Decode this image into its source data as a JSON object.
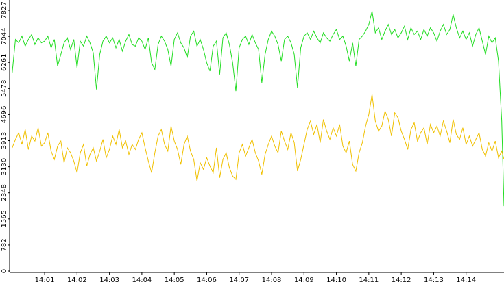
{
  "chart_data": {
    "type": "line",
    "x": [
      0,
      0.1,
      0.2,
      0.3,
      0.4,
      0.5,
      0.6,
      0.7,
      0.8,
      0.9,
      1,
      1.1,
      1.2,
      1.3,
      1.4,
      1.5,
      1.6,
      1.7,
      1.8,
      1.9,
      2,
      2.1,
      2.2,
      2.3,
      2.4,
      2.5,
      2.6,
      2.7,
      2.8,
      2.9,
      3,
      3.1,
      3.2,
      3.3,
      3.4,
      3.5,
      3.6,
      3.7,
      3.8,
      3.9,
      4,
      4.1,
      4.2,
      4.3,
      4.4,
      4.5,
      4.6,
      4.7,
      4.8,
      4.9,
      5,
      5.1,
      5.2,
      5.3,
      5.4,
      5.5,
      5.6,
      5.7,
      5.8,
      5.9,
      6,
      6.1,
      6.2,
      6.3,
      6.4,
      6.5,
      6.6,
      6.7,
      6.8,
      6.9,
      7,
      7.1,
      7.2,
      7.3,
      7.4,
      7.5,
      7.6,
      7.7,
      7.8,
      7.9,
      8,
      8.1,
      8.2,
      8.3,
      8.4,
      8.5,
      8.6,
      8.7,
      8.8,
      8.9,
      9,
      9.1,
      9.2,
      9.3,
      9.4,
      9.5,
      9.6,
      9.7,
      9.8,
      9.9,
      10,
      10.1,
      10.2,
      10.3,
      10.4,
      10.5,
      10.6,
      10.7,
      10.8,
      10.9,
      11,
      11.1,
      11.2,
      11.3,
      11.4,
      11.5,
      11.6,
      11.7,
      11.8,
      11.9,
      12,
      12.1,
      12.2,
      12.3,
      12.4,
      12.5,
      12.6,
      12.7,
      12.8,
      12.9,
      13,
      13.1,
      13.2,
      13.3,
      13.4,
      13.5,
      13.6,
      13.7,
      13.8,
      13.9,
      14,
      14.1,
      14.2,
      14.3,
      14.4,
      14.5,
      14.6,
      14.7,
      14.8,
      14.9,
      15,
      15.1,
      15.17
    ],
    "series": [
      {
        "color": "#22dd22",
        "values": [
          5950,
          6950,
          6850,
          7050,
          6750,
          6950,
          7100,
          6800,
          7000,
          6850,
          6900,
          7050,
          6700,
          6950,
          6150,
          6500,
          6850,
          7000,
          6650,
          6950,
          6100,
          6900,
          6750,
          7050,
          6850,
          6550,
          5450,
          6500,
          6900,
          7050,
          6850,
          7000,
          6700,
          6950,
          6600,
          6900,
          7100,
          6800,
          6750,
          7000,
          6900,
          6650,
          7000,
          6250,
          6050,
          6800,
          7050,
          6900,
          6650,
          6150,
          6950,
          7150,
          6850,
          6700,
          6400,
          7050,
          7200,
          6750,
          6950,
          6650,
          6250,
          6000,
          6750,
          6900,
          5900,
          7000,
          7150,
          6800,
          6250,
          5400,
          6700,
          6950,
          7050,
          6800,
          7100,
          6850,
          6650,
          5650,
          6500,
          6950,
          7200,
          7050,
          6800,
          6300,
          6950,
          7050,
          6850,
          6500,
          5500,
          6700,
          7050,
          7150,
          6950,
          7200,
          7000,
          6850,
          7150,
          7000,
          6900,
          7100,
          7250,
          6950,
          7050,
          6750,
          6300,
          6850,
          6150,
          6950,
          7050,
          7200,
          7400,
          7800,
          7150,
          7300,
          6950,
          7200,
          7400,
          7100,
          7250,
          7000,
          7150,
          7350,
          6950,
          7300,
          7100,
          7200,
          6950,
          7250,
          7050,
          7300,
          7150,
          6900,
          7200,
          7400,
          7100,
          7250,
          7700,
          7300,
          7000,
          7200,
          6950,
          7150,
          6750,
          7100,
          7300,
          6900,
          6500,
          7050,
          6850,
          7000,
          6300,
          4500,
          1950
        ]
      },
      {
        "color": "#f0c000",
        "values": [
          3700,
          3950,
          4150,
          3800,
          4250,
          3650,
          4050,
          3900,
          4300,
          3750,
          3850,
          4150,
          3600,
          3350,
          3750,
          3900,
          3250,
          3700,
          3550,
          3300,
          2950,
          3550,
          3800,
          3150,
          3500,
          3700,
          3300,
          3600,
          3950,
          3400,
          3650,
          4050,
          3800,
          4250,
          3700,
          3900,
          3500,
          3800,
          3650,
          3950,
          4150,
          3700,
          3300,
          2950,
          3550,
          4050,
          4250,
          3800,
          3600,
          4350,
          3900,
          3650,
          3200,
          3800,
          4050,
          3600,
          3350,
          2700,
          3250,
          3050,
          3400,
          3150,
          2950,
          3700,
          2800,
          3350,
          3550,
          3100,
          2850,
          2750,
          3550,
          3800,
          3450,
          3700,
          3950,
          3550,
          3300,
          2900,
          3500,
          3800,
          4050,
          3750,
          3550,
          4200,
          3900,
          3650,
          4150,
          3850,
          3000,
          3350,
          3800,
          4250,
          4500,
          4100,
          4400,
          3850,
          4550,
          4200,
          3950,
          4300,
          4050,
          4400,
          3750,
          3550,
          3900,
          3200,
          3000,
          3550,
          3850,
          4350,
          4700,
          5300,
          4500,
          4200,
          4350,
          4800,
          4550,
          4050,
          4750,
          4600,
          4200,
          3950,
          3650,
          4250,
          4450,
          3900,
          4150,
          4300,
          3800,
          4400,
          4150,
          4350,
          4050,
          4500,
          4200,
          3850,
          4550,
          4100,
          3950,
          4300,
          3800,
          4050,
          3750,
          3950,
          4150,
          3650,
          3450,
          3850,
          3600,
          3900,
          3400,
          3600,
          3350
        ]
      }
    ],
    "xlim": [
      -0.08,
      15.17
    ],
    "xticks": [
      {
        "value": 1,
        "label": "14:01"
      },
      {
        "value": 2,
        "label": "14:02"
      },
      {
        "value": 3,
        "label": "14:03"
      },
      {
        "value": 4,
        "label": "14:04"
      },
      {
        "value": 5,
        "label": "14:05"
      },
      {
        "value": 6,
        "label": "14:06"
      },
      {
        "value": 7,
        "label": "14:07"
      },
      {
        "value": 8,
        "label": "14:08"
      },
      {
        "value": 9,
        "label": "14:09"
      },
      {
        "value": 10,
        "label": "14:10"
      },
      {
        "value": 11,
        "label": "14:11"
      },
      {
        "value": 12,
        "label": "14:12"
      },
      {
        "value": 13,
        "label": "14:13"
      },
      {
        "value": 14,
        "label": "14:14"
      }
    ],
    "ylim": [
      0,
      8135
    ],
    "yticks": [
      0,
      782,
      1565,
      2348,
      3130,
      3913,
      4696,
      5478,
      6261,
      7044,
      7827
    ]
  }
}
